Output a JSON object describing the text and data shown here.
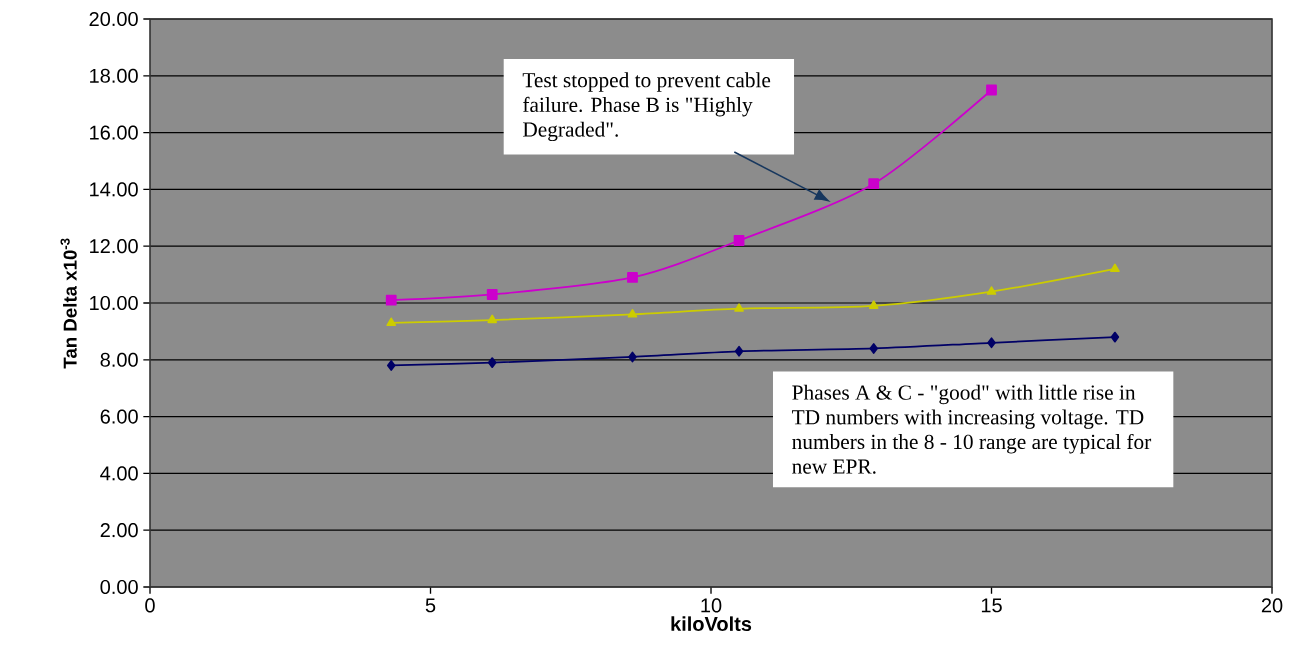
{
  "chart_data": {
    "type": "line",
    "xlabel": "kiloVolts",
    "ylabel": "Tan Delta x10$^{-3}$",
    "xlim": [
      0,
      20
    ],
    "xticks": [
      0,
      5,
      10,
      15,
      20
    ],
    "ylim": [
      0,
      20
    ],
    "yticks": [
      {
        "value": 0,
        "label": "0.00"
      },
      {
        "value": 2,
        "label": "2.00"
      },
      {
        "value": 4,
        "label": "4.00"
      },
      {
        "value": 6,
        "label": "6.00"
      },
      {
        "value": 8,
        "label": "8.00"
      },
      {
        "value": 10,
        "label": "10.00"
      },
      {
        "value": 12,
        "label": "12.00"
      },
      {
        "value": 14,
        "label": "14.00"
      },
      {
        "value": 16,
        "label": "16.00"
      },
      {
        "value": 18,
        "label": "18.00"
      },
      {
        "value": 20,
        "label": "20.00"
      }
    ],
    "grid": "y",
    "series": [
      {
        "color": "#000066",
        "marker": "diamond",
        "x": [
          4.3,
          6.1,
          8.6,
          10.5,
          12.9,
          15.0,
          17.2
        ],
        "values": [
          7.8,
          7.9,
          8.1,
          8.3,
          8.4,
          8.6,
          8.8
        ]
      },
      {
        "color": "#cccc00",
        "marker": "triangle",
        "x": [
          4.3,
          6.1,
          8.6,
          10.5,
          12.9,
          15.0,
          17.2
        ],
        "values": [
          9.3,
          9.4,
          9.6,
          9.8,
          9.9,
          10.4,
          11.2
        ]
      },
      {
        "color": "#cc00cc",
        "marker": "square",
        "x": [
          4.3,
          6.1,
          8.6,
          10.5,
          12.9,
          15.0
        ],
        "values": [
          10.1,
          10.3,
          10.9,
          12.2,
          14.2,
          17.5
        ]
      }
    ],
    "annotations": [
      "Test stopped to prevent cable failure. Phase B is \"Highly Degraded\".",
      "Phases A & C - \"good\" with little rise in TD numbers with increasing voltage.  TD numbers in the 8 - 10 range are typical for new EPR."
    ]
  }
}
